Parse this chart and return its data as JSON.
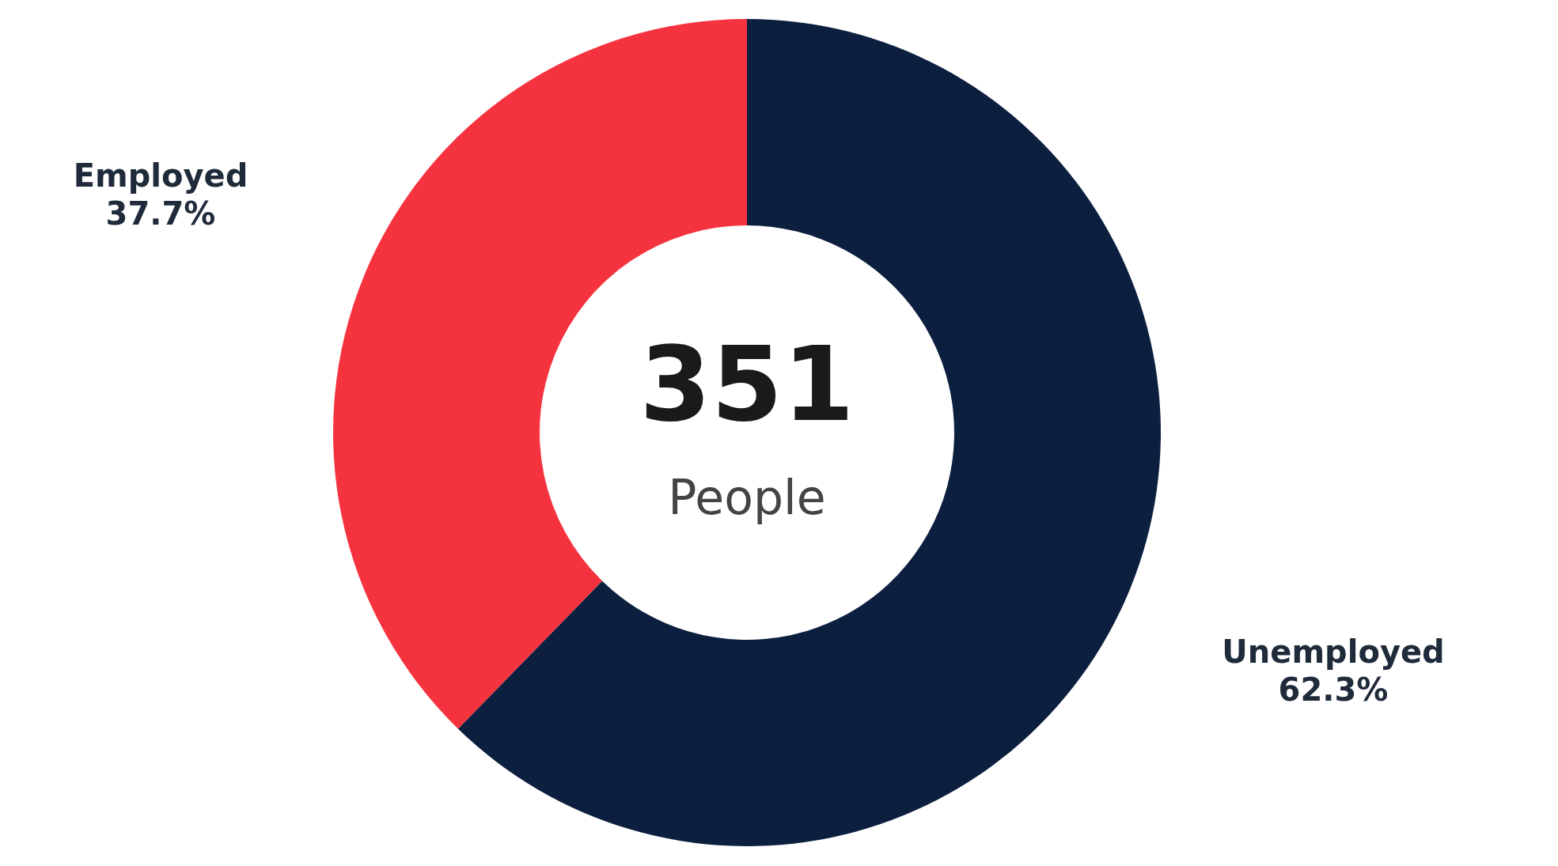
{
  "chart_data": {
    "type": "donut",
    "categories": [
      "Unemployed",
      "Employed"
    ],
    "values": [
      62.3,
      37.7
    ],
    "value_labels": [
      "62.3%",
      "37.7%"
    ],
    "colors": [
      "#0c1f3f",
      "#f5333f"
    ],
    "annotations": [
      "351",
      "People"
    ]
  }
}
